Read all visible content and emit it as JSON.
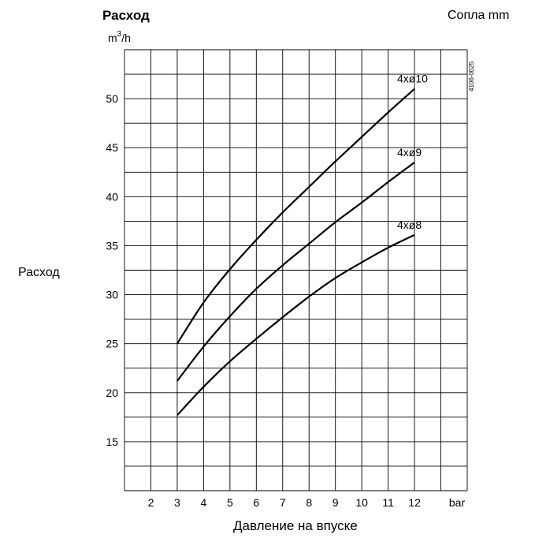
{
  "chart_data": {
    "type": "line",
    "title": "Расход",
    "top_right_label": "Сопла mm",
    "ylabel": "Расход",
    "yunit_base": "m",
    "yunit_sup": "3",
    "yunit_rest": "/h",
    "xlabel": "Давление на впуске",
    "xunit": "bar",
    "figure_code": "4106-0025",
    "xlim": [
      1,
      14
    ],
    "ylim": [
      10,
      55
    ],
    "x_ticks": [
      2,
      3,
      4,
      5,
      6,
      7,
      8,
      9,
      10,
      11,
      12
    ],
    "y_ticks": [
      15,
      20,
      25,
      30,
      35,
      40,
      45,
      50
    ],
    "grid": true,
    "series": [
      {
        "name": "4xø10",
        "x": [
          3,
          4,
          5,
          6,
          7,
          8,
          9,
          10,
          11,
          12
        ],
        "y": [
          25.0,
          29.2,
          32.6,
          35.6,
          38.4,
          41.0,
          43.6,
          46.1,
          48.6,
          51.0
        ]
      },
      {
        "name": "4xø9",
        "x": [
          3,
          4,
          5,
          6,
          7,
          8,
          9,
          10,
          11,
          12
        ],
        "y": [
          21.2,
          24.7,
          27.8,
          30.6,
          33.0,
          35.2,
          37.4,
          39.4,
          41.5,
          43.5
        ]
      },
      {
        "name": "4xø8",
        "x": [
          3,
          4,
          5,
          6,
          7,
          8,
          9,
          10,
          11,
          12
        ],
        "y": [
          17.7,
          20.6,
          23.2,
          25.5,
          27.7,
          29.8,
          31.7,
          33.3,
          34.8,
          36.1
        ]
      }
    ]
  }
}
